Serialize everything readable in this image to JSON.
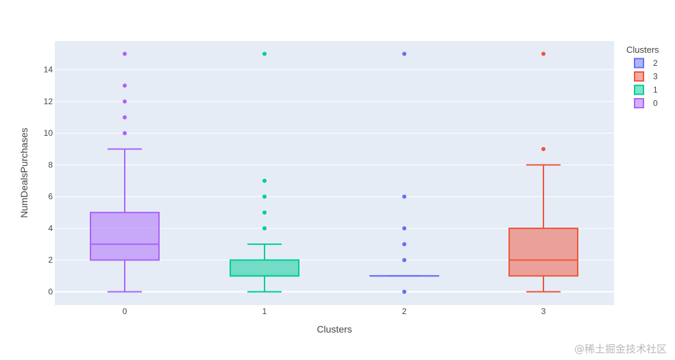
{
  "watermark": "@稀土掘金技术社区",
  "chart_data": {
    "type": "box",
    "title": "",
    "xlabel": "Clusters",
    "ylabel": "NumDealsPurchases",
    "categories": [
      "0",
      "1",
      "2",
      "3"
    ],
    "ylim": [
      -0.8,
      15.8
    ],
    "yticks": [
      0,
      2,
      4,
      6,
      8,
      10,
      12,
      14
    ],
    "grid": true,
    "legend": {
      "title": "Clusters",
      "placement": "top-right",
      "order": [
        "2",
        "3",
        "1",
        "0"
      ]
    },
    "series": [
      {
        "name": "0",
        "x": "0",
        "color": "#ab63fa",
        "min": 0,
        "q1": 2,
        "median": 3,
        "q3": 5,
        "max": 9,
        "outliers": [
          10,
          11,
          12,
          13,
          15
        ]
      },
      {
        "name": "1",
        "x": "1",
        "color": "#00cc96",
        "min": 0,
        "q1": 1,
        "median": 1,
        "q3": 2,
        "max": 3,
        "outliers": [
          4,
          5,
          6,
          7,
          15
        ]
      },
      {
        "name": "2",
        "x": "2",
        "color": "#636efa",
        "min": 1,
        "q1": 1,
        "median": 1,
        "q3": 1,
        "max": 1,
        "outliers": [
          0,
          2,
          3,
          4,
          6,
          15
        ]
      },
      {
        "name": "3",
        "x": "3",
        "color": "#ef553b",
        "min": 0,
        "q1": 1,
        "median": 2,
        "q3": 4,
        "max": 8,
        "outliers": [
          9,
          15
        ]
      }
    ]
  }
}
